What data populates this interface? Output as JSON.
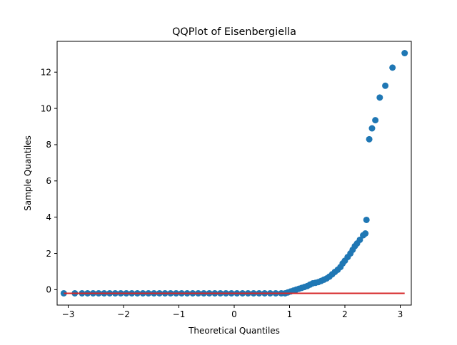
{
  "chart_data": {
    "type": "scatter",
    "title": "QQPlot of Eisenbergiella",
    "xlabel": "Theoretical Quantiles",
    "ylabel": "Sample Quantiles",
    "xlim": [
      -3.2,
      3.2
    ],
    "ylim": [
      -0.85,
      13.7
    ],
    "xticks": [
      -3,
      -2,
      -1,
      0,
      1,
      2,
      3
    ],
    "yticks": [
      0,
      2,
      4,
      6,
      8,
      10,
      12
    ],
    "grid": false,
    "legend": "none",
    "series": [
      {
        "marker_color": "#1f77b4",
        "points": [
          [
            -3.08,
            -0.2
          ],
          [
            -2.88,
            -0.2
          ],
          [
            -2.75,
            -0.2
          ],
          [
            -2.65,
            -0.2
          ],
          [
            -2.55,
            -0.2
          ],
          [
            -2.45,
            -0.2
          ],
          [
            -2.35,
            -0.2
          ],
          [
            -2.25,
            -0.2
          ],
          [
            -2.15,
            -0.2
          ],
          [
            -2.05,
            -0.2
          ],
          [
            -1.95,
            -0.2
          ],
          [
            -1.85,
            -0.2
          ],
          [
            -1.75,
            -0.2
          ],
          [
            -1.65,
            -0.2
          ],
          [
            -1.55,
            -0.2
          ],
          [
            -1.45,
            -0.2
          ],
          [
            -1.35,
            -0.2
          ],
          [
            -1.25,
            -0.2
          ],
          [
            -1.15,
            -0.2
          ],
          [
            -1.05,
            -0.2
          ],
          [
            -0.95,
            -0.2
          ],
          [
            -0.85,
            -0.2
          ],
          [
            -0.75,
            -0.2
          ],
          [
            -0.65,
            -0.2
          ],
          [
            -0.55,
            -0.2
          ],
          [
            -0.45,
            -0.2
          ],
          [
            -0.35,
            -0.2
          ],
          [
            -0.25,
            -0.2
          ],
          [
            -0.15,
            -0.2
          ],
          [
            -0.05,
            -0.2
          ],
          [
            0.05,
            -0.2
          ],
          [
            0.15,
            -0.2
          ],
          [
            0.25,
            -0.2
          ],
          [
            0.35,
            -0.2
          ],
          [
            0.45,
            -0.2
          ],
          [
            0.55,
            -0.2
          ],
          [
            0.65,
            -0.2
          ],
          [
            0.75,
            -0.2
          ],
          [
            0.85,
            -0.2
          ],
          [
            0.92,
            -0.2
          ],
          [
            0.97,
            -0.15
          ],
          [
            1.02,
            -0.1
          ],
          [
            1.07,
            -0.05
          ],
          [
            1.12,
            0.0
          ],
          [
            1.17,
            0.05
          ],
          [
            1.22,
            0.1
          ],
          [
            1.27,
            0.15
          ],
          [
            1.32,
            0.2
          ],
          [
            1.37,
            0.28
          ],
          [
            1.42,
            0.35
          ],
          [
            1.47,
            0.38
          ],
          [
            1.52,
            0.42
          ],
          [
            1.57,
            0.48
          ],
          [
            1.62,
            0.55
          ],
          [
            1.67,
            0.62
          ],
          [
            1.72,
            0.72
          ],
          [
            1.77,
            0.85
          ],
          [
            1.82,
            0.98
          ],
          [
            1.87,
            1.1
          ],
          [
            1.92,
            1.25
          ],
          [
            1.96,
            1.45
          ],
          [
            2.0,
            1.6
          ],
          [
            2.05,
            1.8
          ],
          [
            2.1,
            2.0
          ],
          [
            2.14,
            2.2
          ],
          [
            2.18,
            2.4
          ],
          [
            2.22,
            2.55
          ],
          [
            2.27,
            2.75
          ],
          [
            2.33,
            3.0
          ],
          [
            2.37,
            3.1
          ],
          [
            2.39,
            3.85
          ],
          [
            2.44,
            8.3
          ],
          [
            2.49,
            8.9
          ],
          [
            2.55,
            9.35
          ],
          [
            2.63,
            10.6
          ],
          [
            2.73,
            11.25
          ],
          [
            2.86,
            12.25
          ],
          [
            3.08,
            13.05
          ]
        ]
      }
    ],
    "reference_line": {
      "color": "#d62728",
      "x": [
        -3.08,
        3.08
      ],
      "y": [
        -0.2,
        -0.2
      ]
    }
  }
}
